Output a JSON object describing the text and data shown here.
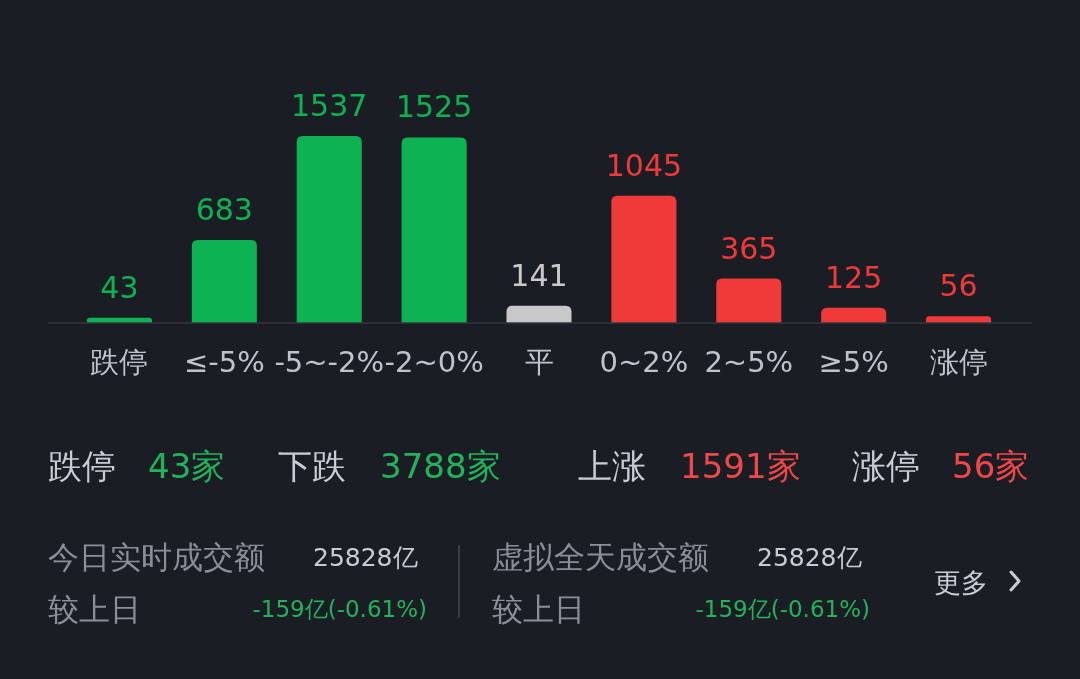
{
  "chart_data": {
    "type": "bar",
    "categories": [
      "跌停",
      "≤-5%",
      "-5~-2%",
      "-2~0%",
      "平",
      "0~2%",
      "2~5%",
      "≥5%",
      "涨停"
    ],
    "values": [
      43,
      683,
      1537,
      1525,
      141,
      1045,
      365,
      125,
      56
    ],
    "colors": [
      "#0db352",
      "#0db352",
      "#0db352",
      "#0db352",
      "#c8c8c8",
      "#f03a3a",
      "#f03a3a",
      "#f03a3a",
      "#f03a3a"
    ],
    "data_labels": true,
    "annotations": [
      "跌停",
      "43家",
      "下跌",
      "3788家",
      "上涨",
      "1591家",
      "涨停",
      "56家",
      "今日实时成交额",
      "25828亿",
      "较上日",
      "-159亿(-0.61%)",
      "虚拟全天成交额",
      "25828亿",
      "较上日",
      "-159亿(-0.61%)",
      "更多"
    ]
  }
}
